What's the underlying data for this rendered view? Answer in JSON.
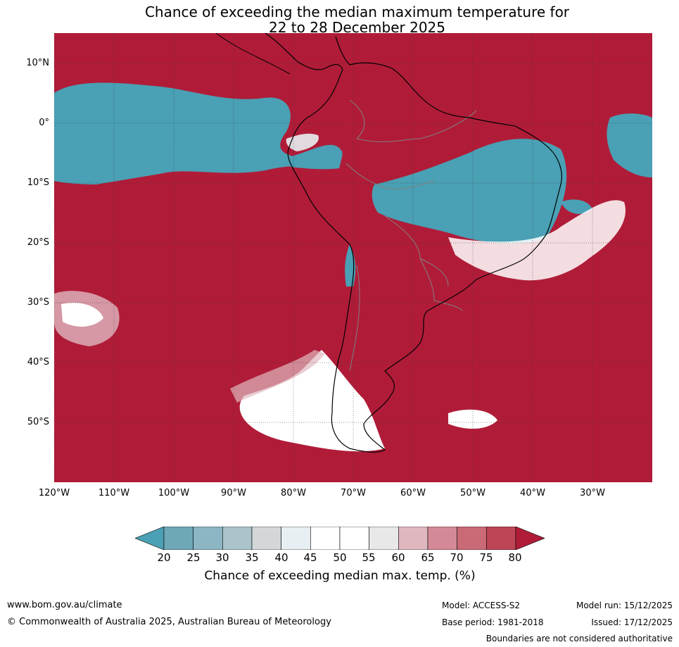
{
  "title_line1": "Chance of exceeding the median maximum temperature for",
  "title_line2": "22 to 28 December 2025",
  "map": {
    "lat_labels": [
      "10°N",
      "0°",
      "10°S",
      "20°S",
      "30°S",
      "40°S",
      "50°S"
    ],
    "lon_labels": [
      "120°W",
      "110°W",
      "100°W",
      "90°W",
      "80°W",
      "70°W",
      "60°W",
      "50°W",
      "40°W",
      "30°W"
    ],
    "colors": {
      "high": "#b01c38",
      "low": "#4aa0b4",
      "neutral": "#ffffff",
      "coast": "#000000",
      "border": "#808080"
    }
  },
  "colorbar": {
    "tick_labels": [
      "20",
      "25",
      "30",
      "35",
      "40",
      "45",
      "50",
      "55",
      "60",
      "65",
      "70",
      "75",
      "80"
    ],
    "colors": [
      "#4aa0b4",
      "#6ea8b6",
      "#8cb6c4",
      "#abc4cb",
      "#d3d7da",
      "#e8eff2",
      "#ffffff",
      "#ffffff",
      "#e8e8e8",
      "#dfb8bf",
      "#d48a96",
      "#c96a76",
      "#bd4555",
      "#b01c38"
    ],
    "title": "Chance of exceeding median max. temp. (%)"
  },
  "footer": {
    "website": "www.bom.gov.au/climate",
    "copyright": "© Commonwealth of Australia 2025, Australian Bureau of Meteorology",
    "model": "Model: ACCESS-S2",
    "base_period": "Base period: 1981-2018",
    "model_run": "Model run: 15/12/2025",
    "issued": "Issued: 17/12/2025",
    "disclaimer": "Boundaries are not considered authoritative"
  }
}
